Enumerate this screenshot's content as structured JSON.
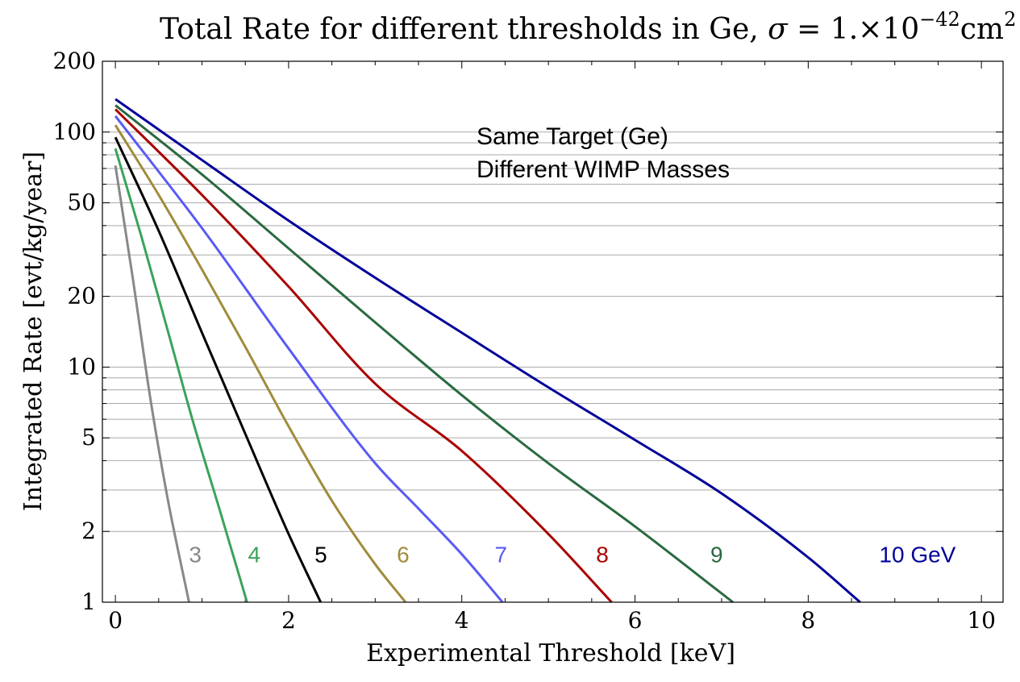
{
  "chart_data": {
    "type": "line",
    "title": {
      "prefix": "Total Rate for different thresholds in Ge, ",
      "sigma": "σ",
      "equals": " = 1.×10",
      "exponent": "−42",
      "unit": "cm",
      "unit_exponent": "2"
    },
    "xlabel": "Experimental Threshold [keV]",
    "ylabel": "Integrated Rate [evt/kg/year]",
    "xlim": [
      -0.15,
      10.25
    ],
    "ylim": [
      1,
      200
    ],
    "yscale": "log",
    "x_ticks": [
      0,
      2,
      4,
      6,
      8,
      10
    ],
    "x_tick_labels": [
      "0",
      "2",
      "4",
      "6",
      "8",
      "10"
    ],
    "y_ticks": [
      1,
      2,
      5,
      10,
      20,
      50,
      100,
      200
    ],
    "y_tick_labels": [
      "1",
      "2",
      "5",
      "10",
      "20",
      "50",
      "100",
      "200"
    ],
    "grid": "horizontal at each log minor step",
    "annotations": [
      "Same Target (Ge)",
      "Different WIMP Masses"
    ],
    "series": [
      {
        "name": "3",
        "color": "#888888",
        "x": [
          0,
          0.2,
          0.4,
          0.6,
          0.85
        ],
        "y": [
          72,
          24,
          7.5,
          2.8,
          1
        ]
      },
      {
        "name": "4",
        "color": "#3aa35a",
        "x": [
          0,
          0.3,
          0.6,
          0.9,
          1.2,
          1.52
        ],
        "y": [
          85,
          36,
          14.5,
          5.8,
          2.5,
          1
        ]
      },
      {
        "name": "5",
        "color": "#000000",
        "x": [
          0,
          0.5,
          1.0,
          1.5,
          2.0,
          2.37
        ],
        "y": [
          95,
          38,
          14,
          5.2,
          1.95,
          1
        ]
      },
      {
        "name": "6",
        "color": "#a08c3c",
        "x": [
          0,
          0.5,
          1.0,
          1.5,
          2.0,
          2.5,
          3.0,
          3.35
        ],
        "y": [
          107,
          54,
          26,
          12.2,
          5.6,
          2.7,
          1.45,
          1
        ]
      },
      {
        "name": "7",
        "color": "#5a5af5",
        "x": [
          0,
          1.0,
          2.0,
          3.0,
          3.5,
          4.0,
          4.47
        ],
        "y": [
          117,
          39,
          12,
          3.9,
          2.5,
          1.6,
          1
        ]
      },
      {
        "name": "8",
        "color": "#aa0000",
        "x": [
          0,
          1.0,
          2.0,
          3.0,
          4.0,
          5.0,
          5.73
        ],
        "y": [
          125,
          54,
          22,
          8.5,
          4.4,
          1.95,
          1
        ]
      },
      {
        "name": "9",
        "color": "#2a6a40",
        "x": [
          0,
          1.0,
          2.0,
          3.0,
          4.0,
          5.0,
          6.0,
          7.13
        ],
        "y": [
          130,
          66,
          32,
          15.5,
          7.6,
          3.9,
          2.1,
          1
        ]
      },
      {
        "name": "10 GeV",
        "color": "#00009a",
        "x": [
          0,
          1.0,
          2.0,
          3.0,
          4.0,
          5.0,
          6.0,
          7.0,
          8.0,
          8.6
        ],
        "y": [
          138,
          76,
          42,
          24,
          14,
          8.2,
          4.9,
          2.9,
          1.55,
          1
        ]
      }
    ],
    "series_labels": [
      {
        "text": "3",
        "color": "#888888",
        "x": 0.85,
        "y": 1.6
      },
      {
        "text": "4",
        "color": "#3aa35a",
        "x": 1.53,
        "y": 1.6
      },
      {
        "text": "5",
        "color": "#000000",
        "x": 2.3,
        "y": 1.6
      },
      {
        "text": "6",
        "color": "#a08c3c",
        "x": 3.25,
        "y": 1.6
      },
      {
        "text": "7",
        "color": "#5a5af5",
        "x": 4.38,
        "y": 1.6
      },
      {
        "text": "8",
        "color": "#aa0000",
        "x": 5.55,
        "y": 1.6
      },
      {
        "text": "9",
        "color": "#2a6a40",
        "x": 6.87,
        "y": 1.6
      },
      {
        "text": "10 GeV",
        "color": "#00009a",
        "x": 8.82,
        "y": 1.6
      }
    ]
  }
}
